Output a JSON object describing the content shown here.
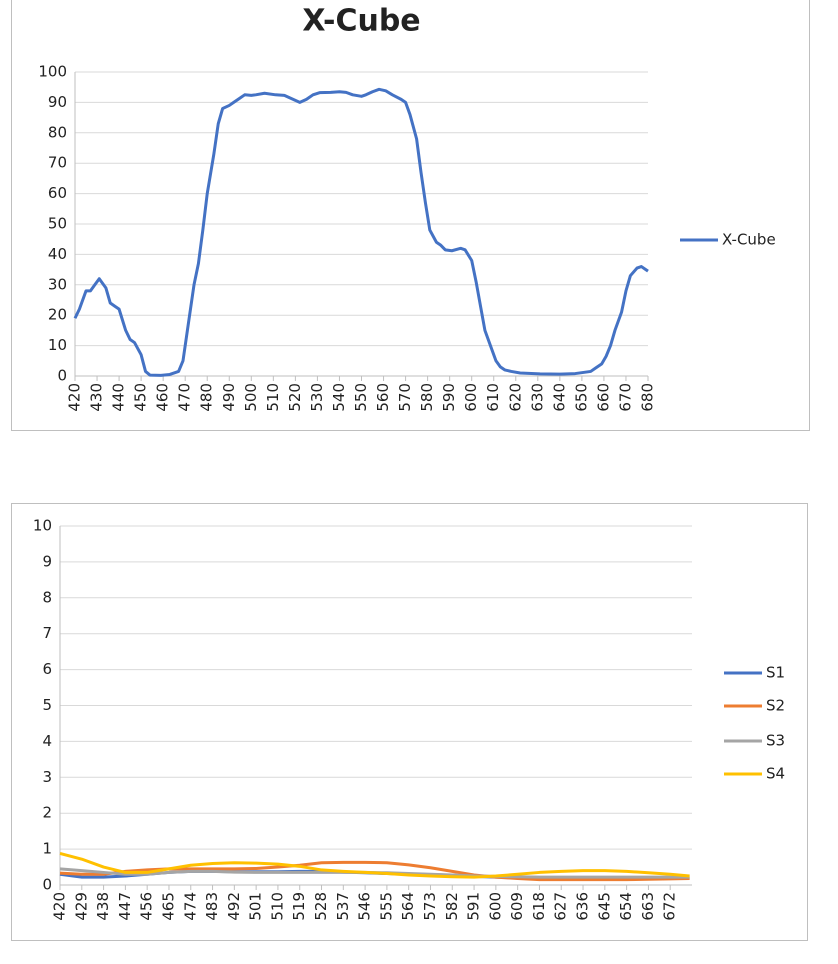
{
  "chart_data": [
    {
      "type": "line",
      "title": "X-Cube",
      "x": [
        420,
        422,
        425,
        427,
        429,
        431,
        434,
        436,
        438,
        440,
        443,
        445,
        447,
        450,
        452,
        454,
        459,
        463,
        467,
        469,
        471,
        474,
        476,
        478,
        480,
        483,
        485,
        487,
        490,
        492,
        494,
        497,
        500,
        502,
        506,
        511,
        515,
        519,
        522,
        525,
        528,
        531,
        536,
        540,
        543,
        546,
        550,
        552,
        555,
        558,
        561,
        564,
        568,
        570,
        572,
        575,
        577,
        579,
        581,
        584,
        586,
        588,
        591,
        595,
        597,
        600,
        602,
        604,
        606,
        609,
        611,
        613,
        615,
        618,
        622,
        631,
        640,
        647,
        654,
        656,
        659,
        661,
        663,
        665,
        668,
        670,
        672,
        675,
        677,
        679,
        680
      ],
      "series": [
        {
          "name": "X-Cube",
          "color": "#4472c4",
          "values": [
            19,
            22,
            28,
            28,
            30,
            32,
            29,
            24,
            23,
            22,
            15,
            12,
            11,
            7,
            1.5,
            0.3,
            0.2,
            0.5,
            1.5,
            5,
            15,
            30,
            37,
            48,
            60,
            73,
            83,
            88,
            89,
            90,
            91,
            92.5,
            92.3,
            92.5,
            93,
            92.5,
            92.3,
            91,
            90,
            91,
            92.5,
            93.2,
            93.3,
            93.5,
            93.3,
            92.5,
            92,
            92.5,
            93.5,
            94.3,
            93.8,
            92.5,
            91,
            90,
            86,
            78,
            67,
            57,
            48,
            44,
            43,
            41.5,
            41.2,
            42,
            41.5,
            38,
            31,
            23,
            15,
            9,
            5,
            3,
            2,
            1.5,
            1,
            0.7,
            0.6,
            0.8,
            1.5,
            2.5,
            4,
            6.5,
            10,
            15,
            21,
            28,
            33,
            35.5,
            36,
            35,
            34.5
          ]
        }
      ],
      "xlim": [
        420,
        680
      ],
      "xticks": [
        420,
        430,
        440,
        450,
        460,
        470,
        480,
        490,
        500,
        510,
        520,
        530,
        540,
        550,
        560,
        570,
        580,
        590,
        600,
        610,
        620,
        630,
        640,
        650,
        660,
        670,
        680
      ],
      "ylim": [
        0,
        100
      ],
      "yticks": [
        0,
        10,
        20,
        30,
        40,
        50,
        60,
        70,
        80,
        90,
        100
      ],
      "grid": true,
      "legend": "right"
    },
    {
      "type": "line",
      "x": [
        420,
        429,
        438,
        447,
        456,
        465,
        474,
        483,
        492,
        501,
        510,
        519,
        528,
        537,
        546,
        555,
        564,
        573,
        582,
        591,
        600,
        609,
        618,
        627,
        636,
        645,
        654,
        663,
        672,
        680
      ],
      "series": [
        {
          "name": "S1",
          "color": "#4472c4",
          "values": [
            0.3,
            0.22,
            0.22,
            0.25,
            0.3,
            0.35,
            0.38,
            0.38,
            0.37,
            0.37,
            0.37,
            0.38,
            0.38,
            0.36,
            0.34,
            0.32,
            0.3,
            0.29,
            0.27,
            0.24,
            0.22,
            0.21,
            0.2,
            0.2,
            0.2,
            0.2,
            0.2,
            0.2,
            0.2,
            0.2
          ]
        },
        {
          "name": "S2",
          "color": "#ed7d31",
          "values": [
            0.33,
            0.3,
            0.3,
            0.38,
            0.42,
            0.45,
            0.45,
            0.45,
            0.45,
            0.46,
            0.5,
            0.55,
            0.62,
            0.63,
            0.63,
            0.62,
            0.56,
            0.48,
            0.38,
            0.28,
            0.22,
            0.18,
            0.15,
            0.15,
            0.15,
            0.15,
            0.15,
            0.16,
            0.17,
            0.18
          ]
        },
        {
          "name": "S3",
          "color": "#a5a5a5",
          "values": [
            0.45,
            0.4,
            0.35,
            0.3,
            0.3,
            0.35,
            0.38,
            0.38,
            0.36,
            0.35,
            0.35,
            0.35,
            0.35,
            0.35,
            0.35,
            0.34,
            0.32,
            0.3,
            0.28,
            0.25,
            0.24,
            0.23,
            0.22,
            0.22,
            0.22,
            0.22,
            0.22,
            0.22,
            0.22,
            0.22
          ]
        },
        {
          "name": "S4",
          "color": "#ffc000",
          "values": [
            0.88,
            0.72,
            0.5,
            0.35,
            0.35,
            0.45,
            0.55,
            0.6,
            0.62,
            0.61,
            0.58,
            0.52,
            0.42,
            0.38,
            0.35,
            0.32,
            0.28,
            0.25,
            0.23,
            0.22,
            0.25,
            0.3,
            0.35,
            0.38,
            0.4,
            0.4,
            0.38,
            0.34,
            0.3,
            0.25
          ]
        }
      ],
      "xlim": [
        420,
        681
      ],
      "xticks": [
        420,
        429,
        438,
        447,
        456,
        465,
        474,
        483,
        492,
        501,
        510,
        519,
        528,
        537,
        546,
        555,
        564,
        573,
        582,
        591,
        600,
        609,
        618,
        627,
        636,
        645,
        654,
        663,
        672
      ],
      "ylim": [
        0,
        10
      ],
      "yticks": [
        0,
        1,
        2,
        3,
        4,
        5,
        6,
        7,
        8,
        9,
        10
      ],
      "grid": true,
      "legend": "right"
    }
  ]
}
